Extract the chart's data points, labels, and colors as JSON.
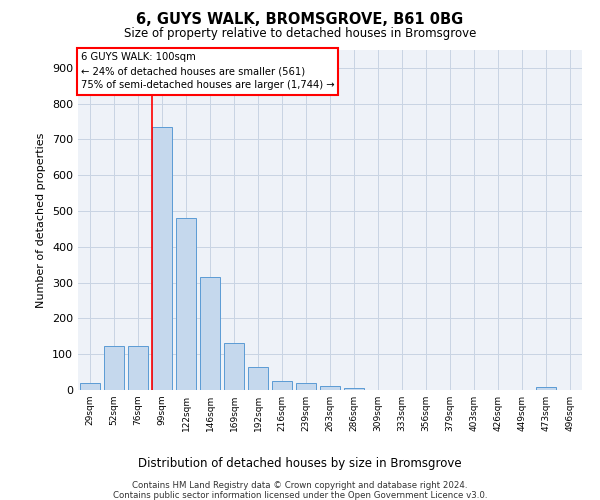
{
  "title": "6, GUYS WALK, BROMSGROVE, B61 0BG",
  "subtitle": "Size of property relative to detached houses in Bromsgrove",
  "xlabel": "Distribution of detached houses by size in Bromsgrove",
  "ylabel": "Number of detached properties",
  "bar_color": "#c5d8ed",
  "bar_edge_color": "#5b9bd5",
  "grid_color": "#c8d4e3",
  "categories": [
    "29sqm",
    "52sqm",
    "76sqm",
    "99sqm",
    "122sqm",
    "146sqm",
    "169sqm",
    "192sqm",
    "216sqm",
    "239sqm",
    "263sqm",
    "286sqm",
    "309sqm",
    "333sqm",
    "356sqm",
    "379sqm",
    "403sqm",
    "426sqm",
    "449sqm",
    "473sqm",
    "496sqm"
  ],
  "values": [
    20,
    122,
    122,
    735,
    480,
    315,
    130,
    65,
    25,
    20,
    10,
    5,
    0,
    0,
    0,
    0,
    0,
    0,
    0,
    7,
    0
  ],
  "ylim": [
    0,
    950
  ],
  "yticks": [
    0,
    100,
    200,
    300,
    400,
    500,
    600,
    700,
    800,
    900
  ],
  "red_line_index": 3,
  "annotation_box_text": "6 GUYS WALK: 100sqm\n← 24% of detached houses are smaller (561)\n75% of semi-detached houses are larger (1,744) →",
  "footer1": "Contains HM Land Registry data © Crown copyright and database right 2024.",
  "footer2": "Contains public sector information licensed under the Open Government Licence v3.0.",
  "background_color": "#eef2f8"
}
